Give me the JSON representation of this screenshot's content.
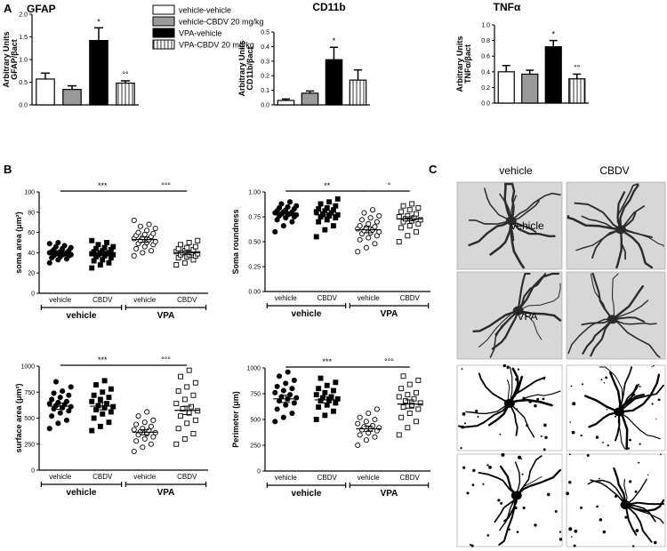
{
  "panels": {
    "A": "A",
    "B": "B",
    "C": "C"
  },
  "legend": {
    "items": [
      {
        "label": "vehicle-vehicle",
        "fill": "#ffffff",
        "pattern": "none"
      },
      {
        "label": "vehicle-CBDV 20 mg/kg",
        "fill": "#9a9a9a",
        "pattern": "none"
      },
      {
        "label": "VPA-vehicle",
        "fill": "#000000",
        "pattern": "none"
      },
      {
        "label": "VPA-CBDV 20 mg/kg",
        "fill": "#ffffff",
        "pattern": "vstripes"
      }
    ]
  },
  "chart_data": [
    {
      "id": "gfap",
      "type": "bar",
      "title": "GFAP",
      "ylabel_lines": [
        "Arbitrary Units",
        "GFAP/βact"
      ],
      "ylim": [
        0,
        2.0
      ],
      "yticks": [
        "0.0",
        "0.5",
        "1.0",
        "1.5",
        "2.0"
      ],
      "ytick_values": [
        0,
        0.5,
        1.0,
        1.5,
        2.0
      ],
      "values": [
        0.57,
        0.34,
        1.42,
        0.48
      ],
      "errors": [
        0.13,
        0.08,
        0.28,
        0.05
      ],
      "annotations": [
        "",
        "",
        "*",
        "°°"
      ]
    },
    {
      "id": "cd11b",
      "type": "bar",
      "title": "CD11b",
      "ylabel_lines": [
        "Arbitrary Units",
        "CD11b/βact"
      ],
      "ylim": [
        0,
        0.5
      ],
      "yticks": [
        "0.0",
        "0.1",
        "0.2",
        "0.3",
        "0.4",
        "0.5"
      ],
      "ytick_values": [
        0,
        0.1,
        0.2,
        0.3,
        0.4,
        0.5
      ],
      "values": [
        0.03,
        0.08,
        0.31,
        0.17
      ],
      "errors": [
        0.01,
        0.015,
        0.085,
        0.07
      ],
      "annotations": [
        "",
        "",
        "*",
        ""
      ]
    },
    {
      "id": "tnfa",
      "type": "bar",
      "title": "TNFα",
      "ylabel_lines": [
        "Arbitrary Units",
        "TNFα/βact"
      ],
      "ylim": [
        0,
        1.0
      ],
      "yticks": [
        "0.0",
        "0.2",
        "0.4",
        "0.6",
        "0.8",
        "1.0"
      ],
      "ytick_values": [
        0,
        0.2,
        0.4,
        0.6,
        0.8,
        1.0
      ],
      "values": [
        0.4,
        0.37,
        0.72,
        0.31
      ],
      "errors": [
        0.08,
        0.05,
        0.08,
        0.06
      ],
      "annotations": [
        "",
        "",
        "*",
        "°°"
      ]
    },
    {
      "id": "soma_area",
      "type": "scatter",
      "ylabel": "soma area (μm²)",
      "ylim": [
        0,
        100
      ],
      "yticks": [
        "0",
        "20",
        "40",
        "60",
        "80",
        "100"
      ],
      "ytick_values": [
        0,
        20,
        40,
        60,
        80,
        100
      ],
      "means": [
        40,
        39,
        53,
        40
      ],
      "sems": [
        1.5,
        1.8,
        2.5,
        1.5
      ],
      "groups": [
        {
          "x": "vehicle",
          "marker": "filled-circle",
          "values": [
            30,
            33,
            34,
            35,
            36,
            37,
            37,
            38,
            38,
            39,
            39,
            40,
            40,
            40,
            41,
            41,
            42,
            43,
            44,
            45,
            46,
            47,
            49,
            50
          ]
        },
        {
          "x": "CBDV",
          "marker": "filled-square",
          "values": [
            25,
            28,
            30,
            32,
            33,
            35,
            36,
            37,
            38,
            38,
            39,
            39,
            40,
            40,
            41,
            42,
            43,
            44,
            45,
            46,
            48,
            50,
            52
          ]
        },
        {
          "x": "vehicle",
          "marker": "open-circle",
          "values": [
            37,
            40,
            42,
            44,
            46,
            48,
            49,
            50,
            51,
            52,
            53,
            54,
            55,
            56,
            57,
            58,
            59,
            60,
            62,
            64,
            66,
            68,
            72
          ]
        },
        {
          "x": "CBDV",
          "marker": "open-square",
          "values": [
            28,
            30,
            33,
            35,
            36,
            37,
            38,
            38,
            39,
            40,
            40,
            41,
            42,
            43,
            44,
            45,
            46,
            48,
            50,
            52
          ]
        }
      ],
      "sig": [
        {
          "text": "***",
          "from": 0,
          "to": 2
        },
        {
          "text": "°°°",
          "from": 2,
          "to": 3
        }
      ],
      "group_labels": [
        "vehicle",
        "VPA"
      ]
    },
    {
      "id": "soma_roundness",
      "type": "scatter",
      "ylabel": "Soma roundness",
      "ylim": [
        0,
        1.0
      ],
      "yticks": [
        "0.00",
        "0.25",
        "0.50",
        "0.75",
        "1.00"
      ],
      "ytick_values": [
        0,
        0.25,
        0.5,
        0.75,
        1.0
      ],
      "means": [
        0.78,
        0.77,
        0.62,
        0.73
      ],
      "sems": [
        0.02,
        0.02,
        0.03,
        0.02
      ],
      "groups": [
        {
          "x": "vehicle",
          "marker": "filled-circle",
          "values": [
            0.6,
            0.66,
            0.7,
            0.72,
            0.74,
            0.75,
            0.76,
            0.77,
            0.77,
            0.78,
            0.78,
            0.79,
            0.8,
            0.8,
            0.81,
            0.82,
            0.83,
            0.84,
            0.85,
            0.86,
            0.88,
            0.9
          ]
        },
        {
          "x": "CBDV",
          "marker": "filled-square",
          "values": [
            0.55,
            0.62,
            0.66,
            0.7,
            0.72,
            0.74,
            0.75,
            0.76,
            0.77,
            0.78,
            0.79,
            0.8,
            0.81,
            0.82,
            0.83,
            0.84,
            0.86,
            0.88,
            0.9,
            0.93
          ]
        },
        {
          "x": "vehicle",
          "marker": "open-circle",
          "values": [
            0.4,
            0.44,
            0.48,
            0.52,
            0.54,
            0.56,
            0.58,
            0.59,
            0.6,
            0.61,
            0.62,
            0.63,
            0.64,
            0.65,
            0.66,
            0.68,
            0.7,
            0.72,
            0.74,
            0.76,
            0.79,
            0.82
          ]
        },
        {
          "x": "CBDV",
          "marker": "open-square",
          "values": [
            0.5,
            0.56,
            0.6,
            0.64,
            0.66,
            0.68,
            0.7,
            0.71,
            0.72,
            0.73,
            0.74,
            0.75,
            0.76,
            0.78,
            0.8,
            0.82,
            0.84,
            0.86,
            0.88
          ]
        }
      ],
      "sig": [
        {
          "text": "**",
          "from": 0,
          "to": 2
        },
        {
          "text": "°",
          "from": 2,
          "to": 3
        }
      ],
      "group_labels": [
        "vehicle",
        "VPA"
      ]
    },
    {
      "id": "surface_area",
      "type": "scatter",
      "ylabel": "surface area (μm²)",
      "ylim": [
        0,
        1000
      ],
      "yticks": [
        "0",
        "250",
        "500",
        "750",
        "1000"
      ],
      "ytick_values": [
        0,
        250,
        500,
        750,
        1000
      ],
      "means": [
        615,
        615,
        365,
        575
      ],
      "sems": [
        30,
        35,
        25,
        40
      ],
      "groups": [
        {
          "x": "vehicle",
          "marker": "filled-circle",
          "values": [
            400,
            450,
            480,
            520,
            550,
            570,
            590,
            600,
            610,
            620,
            630,
            640,
            650,
            660,
            680,
            700,
            720,
            740,
            760,
            800,
            850
          ]
        },
        {
          "x": "CBDV",
          "marker": "filled-square",
          "values": [
            380,
            420,
            460,
            500,
            540,
            560,
            580,
            600,
            610,
            620,
            640,
            660,
            680,
            700,
            720,
            750,
            780,
            820,
            860
          ]
        },
        {
          "x": "vehicle",
          "marker": "open-circle",
          "values": [
            180,
            220,
            250,
            280,
            300,
            320,
            340,
            350,
            360,
            370,
            380,
            390,
            400,
            420,
            440,
            460,
            480,
            520,
            560
          ]
        },
        {
          "x": "CBDV",
          "marker": "open-square",
          "values": [
            250,
            300,
            350,
            400,
            450,
            480,
            520,
            550,
            570,
            590,
            610,
            640,
            680,
            720,
            760,
            800,
            840,
            900,
            960
          ]
        }
      ],
      "sig": [
        {
          "text": "***",
          "from": 0,
          "to": 2
        },
        {
          "text": "°°°",
          "from": 2,
          "to": 3
        }
      ],
      "group_labels": [
        "vehicle",
        "VPA"
      ]
    },
    {
      "id": "perimeter",
      "type": "scatter",
      "ylabel": "Perimeter (μm)",
      "ylim": [
        0,
        1000
      ],
      "yticks": [
        "0",
        "250",
        "500",
        "750",
        "1000"
      ],
      "ytick_values": [
        0,
        250,
        500,
        750,
        1000
      ],
      "means": [
        700,
        690,
        410,
        650
      ],
      "sems": [
        35,
        30,
        25,
        40
      ],
      "groups": [
        {
          "x": "vehicle",
          "marker": "filled-circle",
          "values": [
            480,
            520,
            560,
            600,
            640,
            660,
            680,
            700,
            710,
            720,
            740,
            760,
            780,
            800,
            820,
            850,
            880,
            920,
            960
          ]
        },
        {
          "x": "CBDV",
          "marker": "filled-square",
          "values": [
            500,
            540,
            580,
            620,
            640,
            660,
            680,
            690,
            700,
            710,
            720,
            740,
            760,
            780,
            800,
            830,
            860,
            900
          ]
        },
        {
          "x": "vehicle",
          "marker": "open-circle",
          "values": [
            250,
            300,
            330,
            350,
            370,
            390,
            400,
            410,
            420,
            430,
            440,
            460,
            480,
            500,
            520,
            560,
            600
          ]
        },
        {
          "x": "CBDV",
          "marker": "open-square",
          "values": [
            350,
            420,
            480,
            520,
            560,
            600,
            620,
            640,
            660,
            680,
            700,
            720,
            740,
            760,
            800,
            840,
            880,
            920
          ]
        }
      ],
      "sig": [
        {
          "text": "***",
          "from": 0,
          "to": 2
        },
        {
          "text": "°°°",
          "from": 2,
          "to": 3
        }
      ],
      "group_labels": [
        "vehicle",
        "VPA"
      ]
    }
  ],
  "micrographs": {
    "col_labels": [
      "vehicle",
      "CBDV"
    ],
    "row_labels": [
      "vehicle",
      "VPA"
    ]
  }
}
